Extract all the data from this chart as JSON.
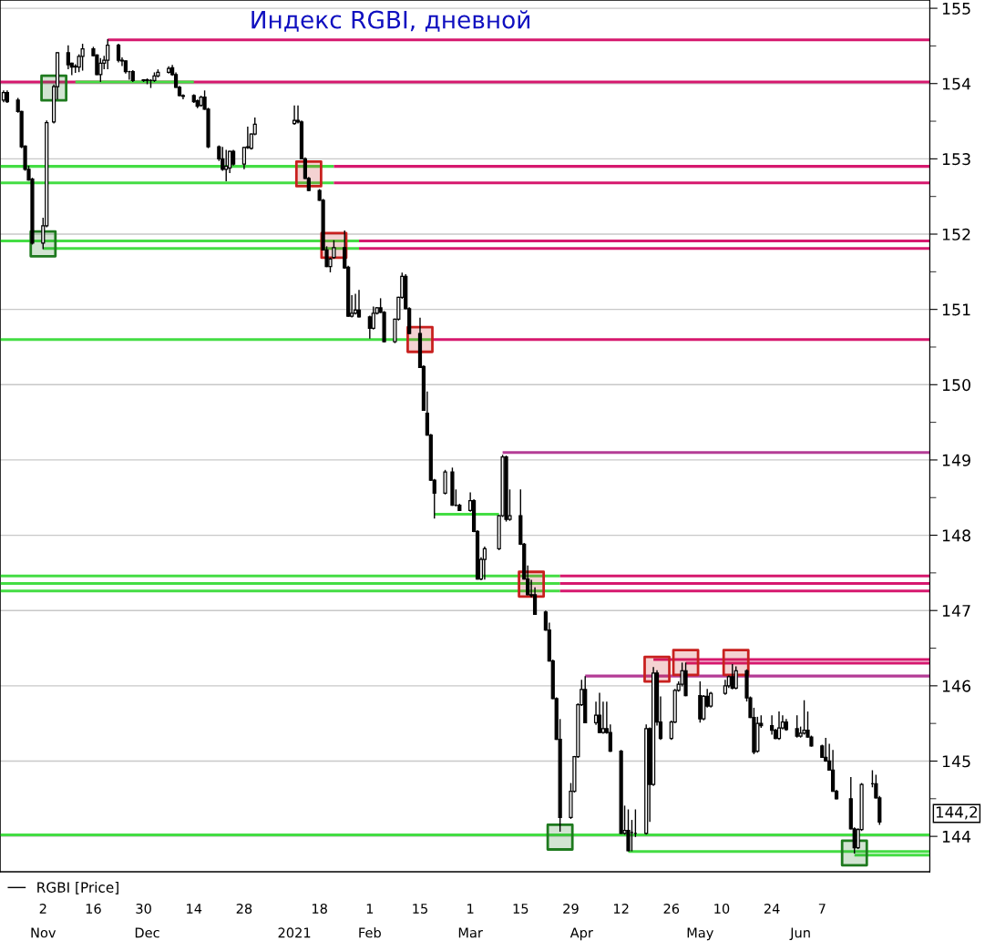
{
  "chart_data": {
    "type": "candlestick",
    "title": "Индекс RGBI, дневной",
    "x": [
      "2020-10-22",
      "2020-10-23",
      "2020-10-26",
      "2020-10-27",
      "2020-10-28",
      "2020-10-29",
      "2020-10-30",
      "2020-11-02",
      "2020-11-03",
      "2020-11-05",
      "2020-11-06",
      "2020-11-09",
      "2020-11-10",
      "2020-11-11",
      "2020-11-12",
      "2020-11-13",
      "2020-11-16",
      "2020-11-17",
      "2020-11-18",
      "2020-11-19",
      "2020-11-20",
      "2020-11-23",
      "2020-11-24",
      "2020-11-25",
      "2020-11-26",
      "2020-11-27",
      "2020-11-30",
      "2020-12-01",
      "2020-12-02",
      "2020-12-03",
      "2020-12-04",
      "2020-12-07",
      "2020-12-08",
      "2020-12-09",
      "2020-12-10",
      "2020-12-11",
      "2020-12-14",
      "2020-12-15",
      "2020-12-16",
      "2020-12-17",
      "2020-12-18",
      "2020-12-21",
      "2020-12-22",
      "2020-12-23",
      "2020-12-24",
      "2020-12-25",
      "2020-12-28",
      "2020-12-29",
      "2020-12-30",
      "2020-12-31",
      "2021-01-11",
      "2021-01-12",
      "2021-01-13",
      "2021-01-14",
      "2021-01-15",
      "2021-01-18",
      "2021-01-19",
      "2021-01-20",
      "2021-01-21",
      "2021-01-22",
      "2021-01-25",
      "2021-01-26",
      "2021-01-27",
      "2021-01-28",
      "2021-01-29",
      "2021-02-01",
      "2021-02-02",
      "2021-02-03",
      "2021-02-04",
      "2021-02-05",
      "2021-02-08",
      "2021-02-09",
      "2021-02-10",
      "2021-02-11",
      "2021-02-12",
      "2021-02-15",
      "2021-02-16",
      "2021-02-17",
      "2021-02-18",
      "2021-02-19",
      "2021-02-22",
      "2021-02-24",
      "2021-02-25",
      "2021-02-26",
      "2021-03-01",
      "2021-03-02",
      "2021-03-03",
      "2021-03-04",
      "2021-03-05",
      "2021-03-09",
      "2021-03-10",
      "2021-03-11",
      "2021-03-12",
      "2021-03-15",
      "2021-03-16",
      "2021-03-17",
      "2021-03-18",
      "2021-03-19",
      "2021-03-22",
      "2021-03-23",
      "2021-03-24",
      "2021-03-25",
      "2021-03-26",
      "2021-03-29",
      "2021-03-30",
      "2021-03-31",
      "2021-04-01",
      "2021-04-02",
      "2021-04-05",
      "2021-04-06",
      "2021-04-07",
      "2021-04-08",
      "2021-04-09",
      "2021-04-12",
      "2021-04-13",
      "2021-04-14",
      "2021-04-15",
      "2021-04-16",
      "2021-04-19",
      "2021-04-20",
      "2021-04-21",
      "2021-04-22",
      "2021-04-23",
      "2021-04-26",
      "2021-04-27",
      "2021-04-28",
      "2021-04-29",
      "2021-04-30",
      "2021-05-04",
      "2021-05-05",
      "2021-05-06",
      "2021-05-07",
      "2021-05-11",
      "2021-05-12",
      "2021-05-13",
      "2021-05-14",
      "2021-05-17",
      "2021-05-18",
      "2021-05-19",
      "2021-05-20",
      "2021-05-21",
      "2021-05-24",
      "2021-05-25",
      "2021-05-26",
      "2021-05-27",
      "2021-05-28",
      "2021-05-31",
      "2021-06-01",
      "2021-06-02",
      "2021-06-03",
      "2021-06-04",
      "2021-06-07",
      "2021-06-08",
      "2021-06-09",
      "2021-06-10",
      "2021-06-11",
      "2021-06-15",
      "2021-06-16",
      "2021-06-17",
      "2021-06-18",
      "2021-06-21",
      "2021-06-22",
      "2021-06-23"
    ],
    "xlim": [
      "2020-10-21",
      "2021-07-07"
    ],
    "xticks": [
      {
        "value": "2020-11-02",
        "label": "2"
      },
      {
        "value": "2020-11-16",
        "label": "16"
      },
      {
        "value": "2020-11-30",
        "label": "30"
      },
      {
        "value": "2020-12-14",
        "label": "14"
      },
      {
        "value": "2020-12-28",
        "label": "28"
      },
      {
        "value": "2021-01-18",
        "label": "18"
      },
      {
        "value": "2021-02-01",
        "label": "1"
      },
      {
        "value": "2021-02-15",
        "label": "15"
      },
      {
        "value": "2021-03-01",
        "label": "1"
      },
      {
        "value": "2021-03-15",
        "label": "15"
      },
      {
        "value": "2021-03-29",
        "label": "29"
      },
      {
        "value": "2021-04-12",
        "label": "12"
      },
      {
        "value": "2021-04-26",
        "label": "26"
      },
      {
        "value": "2021-05-10",
        "label": "10"
      },
      {
        "value": "2021-05-24",
        "label": "24"
      },
      {
        "value": "2021-06-07",
        "label": "7"
      }
    ],
    "x2ticks": [
      {
        "value": "2020-11-02",
        "label": "Nov"
      },
      {
        "value": "2020-12-01",
        "label": "Dec"
      },
      {
        "value": "2021-01-11",
        "label": "2021"
      },
      {
        "value": "2021-02-01",
        "label": "Feb"
      },
      {
        "value": "2021-03-01",
        "label": "Mar"
      },
      {
        "value": "2021-04-01",
        "label": "Apr"
      },
      {
        "value": "2021-05-04",
        "label": "May"
      },
      {
        "value": "2021-06-01",
        "label": "Jun"
      }
    ],
    "ylim": [
      143.53,
      155.11
    ],
    "yticks": [
      144,
      {
        "value": 144.5,
        "label": null
      },
      145,
      {
        "value": 145.5,
        "label": null
      },
      146,
      {
        "value": 146.5,
        "label": null
      },
      147,
      {
        "value": 147.5,
        "label": null
      },
      148,
      {
        "value": 148.5,
        "label": null
      },
      149,
      {
        "value": 149.5,
        "label": null
      },
      150,
      {
        "value": 150.5,
        "label": null
      },
      151,
      {
        "value": 151.5,
        "label": null
      },
      152,
      {
        "value": 152.5,
        "label": null
      },
      153,
      {
        "value": 153.5,
        "label": null
      },
      154,
      {
        "value": 154.5,
        "label": null
      },
      155
    ],
    "grid": "y",
    "legend": "bottom left",
    "x2lim": [
      "2020-10-21",
      "2021-07-07"
    ],
    "annotations": [
      "144,2"
    ],
    "series": [
      {
        "type": "line",
        "color": "#d6186e",
        "x": [
          "2020-10-21",
          "2021-07-07"
        ],
        "values": [
          154.02,
          154.02
        ]
      },
      {
        "type": "line",
        "color": "#44dd44",
        "x": [
          "2020-11-11",
          "2020-12-14"
        ],
        "values": [
          154.02,
          154.02
        ]
      },
      {
        "type": "line",
        "color": "#d6186e",
        "x": [
          "2020-11-20",
          "2021-07-07"
        ],
        "values": [
          154.58,
          154.58
        ]
      },
      {
        "type": "line",
        "color": "#44dd44",
        "x": [
          "2020-10-21",
          "2021-01-22"
        ],
        "values": [
          152.9,
          152.9
        ]
      },
      {
        "type": "line",
        "color": "#d6186e",
        "x": [
          "2021-01-22",
          "2021-07-07"
        ],
        "values": [
          152.9,
          152.9
        ]
      },
      {
        "type": "line",
        "color": "#44dd44",
        "x": [
          "2020-10-21",
          "2021-01-22"
        ],
        "values": [
          152.68,
          152.68
        ]
      },
      {
        "type": "line",
        "color": "#d6186e",
        "x": [
          "2021-01-22",
          "2021-07-07"
        ],
        "values": [
          152.68,
          152.68
        ]
      },
      {
        "type": "line",
        "color": "#44dd44",
        "x": [
          "2020-10-21",
          "2021-01-29"
        ],
        "values": [
          151.91,
          151.91
        ]
      },
      {
        "type": "line",
        "color": "#d6186e",
        "x": [
          "2021-01-29",
          "2021-07-07"
        ],
        "values": [
          151.91,
          151.91
        ]
      },
      {
        "type": "line",
        "color": "#44dd44",
        "x": [
          "2020-11-02",
          "2021-01-29"
        ],
        "values": [
          151.81,
          151.81
        ]
      },
      {
        "type": "line",
        "color": "#d6186e",
        "x": [
          "2021-01-29",
          "2021-07-07"
        ],
        "values": [
          151.81,
          151.81
        ]
      },
      {
        "type": "line",
        "color": "#44dd44",
        "x": [
          "2020-10-21",
          "2021-02-18"
        ],
        "values": [
          150.6,
          150.6
        ]
      },
      {
        "type": "line",
        "color": "#d6186e",
        "x": [
          "2021-02-18",
          "2021-07-07"
        ],
        "values": [
          150.6,
          150.6
        ]
      },
      {
        "type": "line",
        "color": "#b43c96",
        "x": [
          "2021-03-10",
          "2021-07-07"
        ],
        "values": [
          149.1,
          149.1
        ]
      },
      {
        "type": "line",
        "color": "#44dd44",
        "x": [
          "2021-02-19",
          "2021-03-09"
        ],
        "values": [
          148.28,
          148.28
        ]
      },
      {
        "type": "line",
        "color": "#44dd44",
        "x": [
          "2020-10-21",
          "2021-03-26"
        ],
        "values": [
          147.46,
          147.46
        ]
      },
      {
        "type": "line",
        "color": "#d6186e",
        "x": [
          "2021-03-26",
          "2021-07-07"
        ],
        "values": [
          147.46,
          147.46
        ]
      },
      {
        "type": "line",
        "color": "#44dd44",
        "x": [
          "2020-10-21",
          "2021-03-26"
        ],
        "values": [
          147.36,
          147.36
        ]
      },
      {
        "type": "line",
        "color": "#d6186e",
        "x": [
          "2021-03-26",
          "2021-07-07"
        ],
        "values": [
          147.36,
          147.36
        ]
      },
      {
        "type": "line",
        "color": "#44dd44",
        "x": [
          "2020-10-21",
          "2021-03-26"
        ],
        "values": [
          147.26,
          147.26
        ]
      },
      {
        "type": "line",
        "color": "#d6186e",
        "x": [
          "2021-03-26",
          "2021-07-07"
        ],
        "values": [
          147.26,
          147.26
        ]
      },
      {
        "type": "line",
        "color": "#b43c96",
        "x": [
          "2021-04-02",
          "2021-07-07"
        ],
        "values": [
          146.13,
          146.13
        ]
      },
      {
        "type": "line",
        "color": "#d6186e",
        "x": [
          "2021-04-21",
          "2021-07-07"
        ],
        "values": [
          146.35,
          146.35
        ]
      },
      {
        "type": "line",
        "color": "#d6186e",
        "x": [
          "2021-04-30",
          "2021-07-07"
        ],
        "values": [
          146.3,
          146.3
        ]
      },
      {
        "type": "line",
        "color": "#44dd44",
        "x": [
          "2020-10-21",
          "2021-07-07"
        ],
        "values": [
          144.02,
          144.02
        ]
      },
      {
        "type": "line",
        "color": "#44dd44",
        "x": [
          "2021-04-14",
          "2021-07-07"
        ],
        "values": [
          143.8,
          143.8
        ]
      },
      {
        "type": "line",
        "color": "#44dd44",
        "x": [
          "2021-06-16",
          "2021-07-07"
        ],
        "values": [
          143.75,
          143.75
        ]
      },
      {
        "type": "scatter",
        "marker": "square",
        "color": "#1e7a1e",
        "x": [
          "2020-11-05",
          "2020-11-02",
          "2021-03-26",
          "2021-06-16"
        ],
        "values": [
          153.94,
          151.87,
          143.99,
          143.78
        ]
      },
      {
        "type": "scatter",
        "marker": "square",
        "color": "#c8201e",
        "x": [
          "2021-01-15",
          "2021-01-22",
          "2021-02-15",
          "2021-03-18",
          "2021-04-22",
          "2021-04-30",
          "2021-05-14"
        ],
        "values": [
          152.8,
          151.85,
          150.6,
          147.35,
          146.22,
          146.31,
          146.31
        ]
      },
      {
        "name": "RGBI [Price]",
        "color": "#000000",
        "ohlc": [
          [
            153.78,
            153.9,
            153.76,
            153.88
          ],
          [
            153.88,
            153.9,
            153.75,
            153.76
          ],
          [
            153.78,
            153.8,
            153.62,
            153.63
          ],
          [
            153.63,
            153.63,
            153.15,
            153.16
          ],
          [
            153.17,
            153.17,
            152.85,
            152.86
          ],
          [
            152.86,
            152.9,
            152.72,
            152.72
          ],
          [
            152.73,
            152.74,
            151.87,
            151.88
          ],
          [
            151.88,
            152.21,
            151.81,
            152.11
          ],
          [
            152.11,
            153.5,
            152.1,
            153.48
          ],
          [
            153.49,
            153.98,
            153.48,
            153.96
          ],
          [
            153.96,
            154.41,
            153.8,
            154.41
          ],
          [
            154.41,
            154.5,
            154.2,
            154.25
          ],
          [
            154.27,
            154.27,
            154.12,
            154.22
          ],
          [
            154.23,
            154.25,
            154.15,
            154.22
          ],
          [
            154.22,
            154.38,
            154.16,
            154.36
          ],
          [
            154.36,
            154.52,
            154.18,
            154.46
          ],
          [
            154.46,
            154.48,
            154.37,
            154.37
          ],
          [
            154.38,
            154.38,
            154.12,
            154.12
          ],
          [
            154.12,
            154.33,
            154.03,
            154.27
          ],
          [
            154.27,
            154.36,
            154.2,
            154.31
          ],
          [
            154.31,
            154.58,
            154.2,
            154.51
          ],
          [
            154.51,
            154.52,
            154.29,
            154.31
          ],
          [
            154.31,
            154.34,
            154.24,
            154.3
          ],
          [
            154.3,
            154.3,
            154.14,
            154.16
          ],
          [
            154.16,
            154.16,
            154.06,
            154.16
          ],
          [
            154.16,
            154.17,
            154.03,
            154.04
          ],
          [
            154.04,
            154.05,
            154.03,
            154.05
          ],
          [
            154.05,
            154.06,
            154.0,
            154.04
          ],
          [
            154.04,
            154.05,
            153.95,
            154.04
          ],
          [
            154.04,
            154.14,
            154.03,
            154.1
          ],
          [
            154.1,
            154.18,
            154.09,
            154.15
          ],
          [
            154.15,
            154.22,
            154.14,
            154.2
          ],
          [
            154.21,
            154.24,
            154.11,
            154.12
          ],
          [
            154.12,
            154.14,
            153.95,
            153.95
          ],
          [
            153.95,
            153.96,
            153.84,
            153.84
          ],
          [
            153.84,
            153.85,
            153.8,
            153.83
          ],
          [
            153.84,
            153.85,
            153.75,
            153.76
          ],
          [
            153.77,
            153.78,
            153.68,
            153.7
          ],
          [
            153.71,
            153.83,
            153.7,
            153.82
          ],
          [
            153.82,
            153.9,
            153.66,
            153.66
          ],
          [
            153.66,
            153.67,
            153.15,
            153.16
          ],
          [
            153.16,
            153.17,
            152.98,
            153.0
          ],
          [
            153.0,
            153.15,
            152.85,
            152.86
          ],
          [
            152.86,
            153.11,
            152.71,
            152.9
          ],
          [
            152.88,
            153.1,
            152.82,
            153.1
          ],
          [
            153.1,
            153.11,
            152.92,
            152.93
          ],
          [
            152.93,
            153.15,
            152.87,
            153.15
          ],
          [
            153.15,
            153.42,
            153.14,
            153.16
          ],
          [
            153.14,
            153.33,
            153.13,
            153.33
          ],
          [
            153.33,
            153.54,
            153.32,
            153.46
          ],
          [
            153.47,
            153.7,
            153.46,
            153.51
          ],
          [
            153.51,
            153.7,
            153.48,
            153.49
          ],
          [
            153.49,
            153.5,
            153.0,
            153.0
          ],
          [
            153.0,
            153.01,
            152.74,
            152.74
          ],
          [
            152.74,
            152.75,
            152.58,
            152.58
          ],
          [
            152.58,
            152.59,
            152.45,
            152.45
          ],
          [
            152.45,
            152.46,
            151.79,
            151.79
          ],
          [
            151.79,
            151.83,
            151.57,
            151.57
          ],
          [
            151.57,
            151.68,
            151.5,
            151.67
          ],
          [
            151.69,
            151.91,
            151.68,
            151.82
          ],
          [
            151.82,
            152.04,
            151.55,
            151.55
          ],
          [
            151.56,
            151.57,
            150.91,
            150.91
          ],
          [
            150.91,
            151.18,
            150.9,
            150.95
          ],
          [
            150.95,
            151.2,
            150.94,
            150.99
          ],
          [
            150.99,
            151.25,
            150.9,
            150.9
          ],
          [
            150.9,
            150.91,
            150.62,
            150.75
          ],
          [
            150.75,
            151.03,
            150.74,
            150.95
          ],
          [
            150.95,
            151.02,
            150.94,
            151.02
          ],
          [
            151.02,
            151.14,
            150.96,
            150.96
          ],
          [
            150.96,
            150.97,
            150.57,
            150.57
          ],
          [
            150.57,
            150.87,
            150.56,
            150.87
          ],
          [
            150.87,
            151.16,
            150.86,
            151.16
          ],
          [
            151.16,
            151.48,
            151.15,
            151.44
          ],
          [
            151.44,
            151.46,
            151.01,
            151.01
          ],
          [
            151.01,
            151.02,
            150.68,
            150.68
          ],
          [
            150.68,
            150.88,
            150.23,
            150.23
          ],
          [
            150.24,
            150.25,
            149.66,
            149.66
          ],
          [
            149.62,
            149.9,
            149.33,
            149.33
          ],
          [
            149.33,
            149.34,
            148.73,
            148.73
          ],
          [
            148.73,
            148.74,
            148.23,
            148.56
          ],
          [
            148.56,
            148.86,
            148.55,
            148.84
          ],
          [
            148.84,
            148.89,
            148.4,
            148.4
          ],
          [
            148.4,
            148.6,
            148.39,
            148.4
          ],
          [
            148.4,
            148.41,
            148.33,
            148.33
          ],
          [
            148.33,
            148.56,
            148.32,
            148.46
          ],
          [
            148.46,
            148.47,
            148.05,
            148.05
          ],
          [
            148.05,
            148.06,
            147.42,
            147.42
          ],
          [
            147.42,
            147.7,
            147.41,
            147.68
          ],
          [
            147.68,
            147.84,
            147.42,
            147.82
          ],
          [
            147.82,
            148.26,
            147.81,
            148.26
          ],
          [
            148.26,
            149.06,
            148.25,
            149.04
          ],
          [
            149.04,
            149.05,
            148.19,
            148.21
          ],
          [
            148.21,
            148.6,
            148.2,
            148.26
          ],
          [
            148.26,
            148.6,
            147.88,
            147.88
          ],
          [
            147.88,
            147.89,
            147.42,
            147.42
          ],
          [
            147.42,
            147.59,
            147.21,
            147.21
          ],
          [
            147.21,
            147.4,
            147.18,
            147.2
          ],
          [
            147.21,
            147.3,
            146.95,
            146.95
          ],
          [
            146.98,
            146.99,
            146.74,
            146.74
          ],
          [
            146.74,
            146.83,
            146.33,
            146.33
          ],
          [
            146.33,
            146.34,
            145.83,
            145.83
          ],
          [
            145.83,
            145.84,
            145.29,
            145.29
          ],
          [
            145.29,
            145.55,
            144.07,
            144.25
          ],
          [
            144.25,
            144.7,
            144.24,
            144.6
          ],
          [
            144.6,
            145.06,
            144.59,
            145.06
          ],
          [
            145.06,
            145.76,
            145.05,
            145.75
          ],
          [
            145.75,
            146.07,
            145.74,
            145.95
          ],
          [
            145.95,
            146.12,
            145.51,
            145.51
          ],
          [
            145.51,
            145.78,
            145.49,
            145.61
          ],
          [
            145.61,
            145.9,
            145.38,
            145.38
          ],
          [
            145.38,
            145.78,
            145.37,
            145.43
          ],
          [
            145.43,
            145.78,
            145.37,
            145.38
          ],
          [
            145.38,
            145.48,
            145.13,
            145.13
          ],
          [
            145.13,
            145.14,
            144.04,
            144.04
          ],
          [
            144.04,
            144.4,
            144.03,
            144.08
          ],
          [
            144.08,
            144.35,
            143.81,
            143.81
          ],
          [
            144.05,
            144.21,
            143.81,
            144.05
          ],
          [
            144.04,
            144.35,
            144.0,
            144.04
          ],
          [
            144.04,
            145.48,
            144.03,
            145.43
          ],
          [
            145.43,
            145.44,
            144.2,
            144.69
          ],
          [
            144.69,
            146.24,
            144.68,
            146.17
          ],
          [
            146.17,
            146.2,
            145.48,
            145.52
          ],
          [
            145.52,
            145.85,
            145.29,
            145.3
          ],
          [
            145.3,
            145.53,
            145.29,
            145.52
          ],
          [
            145.52,
            145.95,
            145.51,
            145.94
          ],
          [
            145.94,
            146.05,
            145.93,
            146.02
          ],
          [
            146.02,
            146.3,
            146.0,
            146.2
          ],
          [
            146.2,
            146.3,
            145.87,
            145.87
          ],
          [
            145.87,
            146.05,
            145.52,
            145.56
          ],
          [
            145.56,
            145.87,
            145.55,
            145.86
          ],
          [
            145.86,
            145.95,
            145.72,
            145.73
          ],
          [
            145.73,
            145.91,
            145.72,
            145.9
          ],
          [
            145.9,
            146.07,
            145.89,
            146.0
          ],
          [
            146.0,
            146.13,
            145.98,
            146.12
          ],
          [
            146.12,
            146.28,
            145.96,
            145.97
          ],
          [
            145.97,
            146.25,
            145.96,
            146.2
          ],
          [
            146.2,
            146.21,
            145.8,
            145.84
          ],
          [
            145.84,
            145.85,
            145.58,
            145.58
          ],
          [
            145.58,
            145.7,
            145.1,
            145.12
          ],
          [
            145.13,
            145.58,
            145.12,
            145.5
          ],
          [
            145.5,
            145.6,
            145.45,
            145.47
          ],
          [
            145.47,
            145.6,
            145.36,
            145.41
          ],
          [
            145.41,
            145.42,
            145.3,
            145.3
          ],
          [
            145.3,
            145.65,
            145.29,
            145.44
          ],
          [
            145.44,
            145.6,
            145.43,
            145.52
          ],
          [
            145.52,
            145.55,
            145.41,
            145.42
          ],
          [
            145.43,
            145.6,
            145.32,
            145.33
          ],
          [
            145.33,
            145.45,
            145.32,
            145.37
          ],
          [
            145.37,
            145.8,
            145.36,
            145.41
          ],
          [
            145.41,
            145.65,
            145.32,
            145.32
          ],
          [
            145.32,
            145.33,
            145.2,
            145.2
          ],
          [
            145.2,
            145.21,
            145.05,
            145.05
          ],
          [
            145.05,
            145.3,
            145.0,
            145.0
          ],
          [
            145.0,
            145.22,
            144.88,
            144.88
          ],
          [
            144.88,
            145.14,
            144.6,
            144.6
          ],
          [
            144.6,
            144.61,
            144.5,
            144.5
          ],
          [
            144.5,
            144.78,
            144.1,
            144.1
          ],
          [
            144.1,
            144.11,
            143.78,
            143.85
          ],
          [
            143.85,
            144.1,
            143.84,
            144.09
          ],
          [
            144.09,
            144.7,
            144.08,
            144.69
          ],
          [
            144.7,
            144.87,
            144.66,
            144.7
          ],
          [
            144.7,
            144.81,
            144.51,
            144.51
          ],
          [
            144.51,
            144.53,
            144.16,
            144.19
          ]
        ]
      }
    ]
  }
}
